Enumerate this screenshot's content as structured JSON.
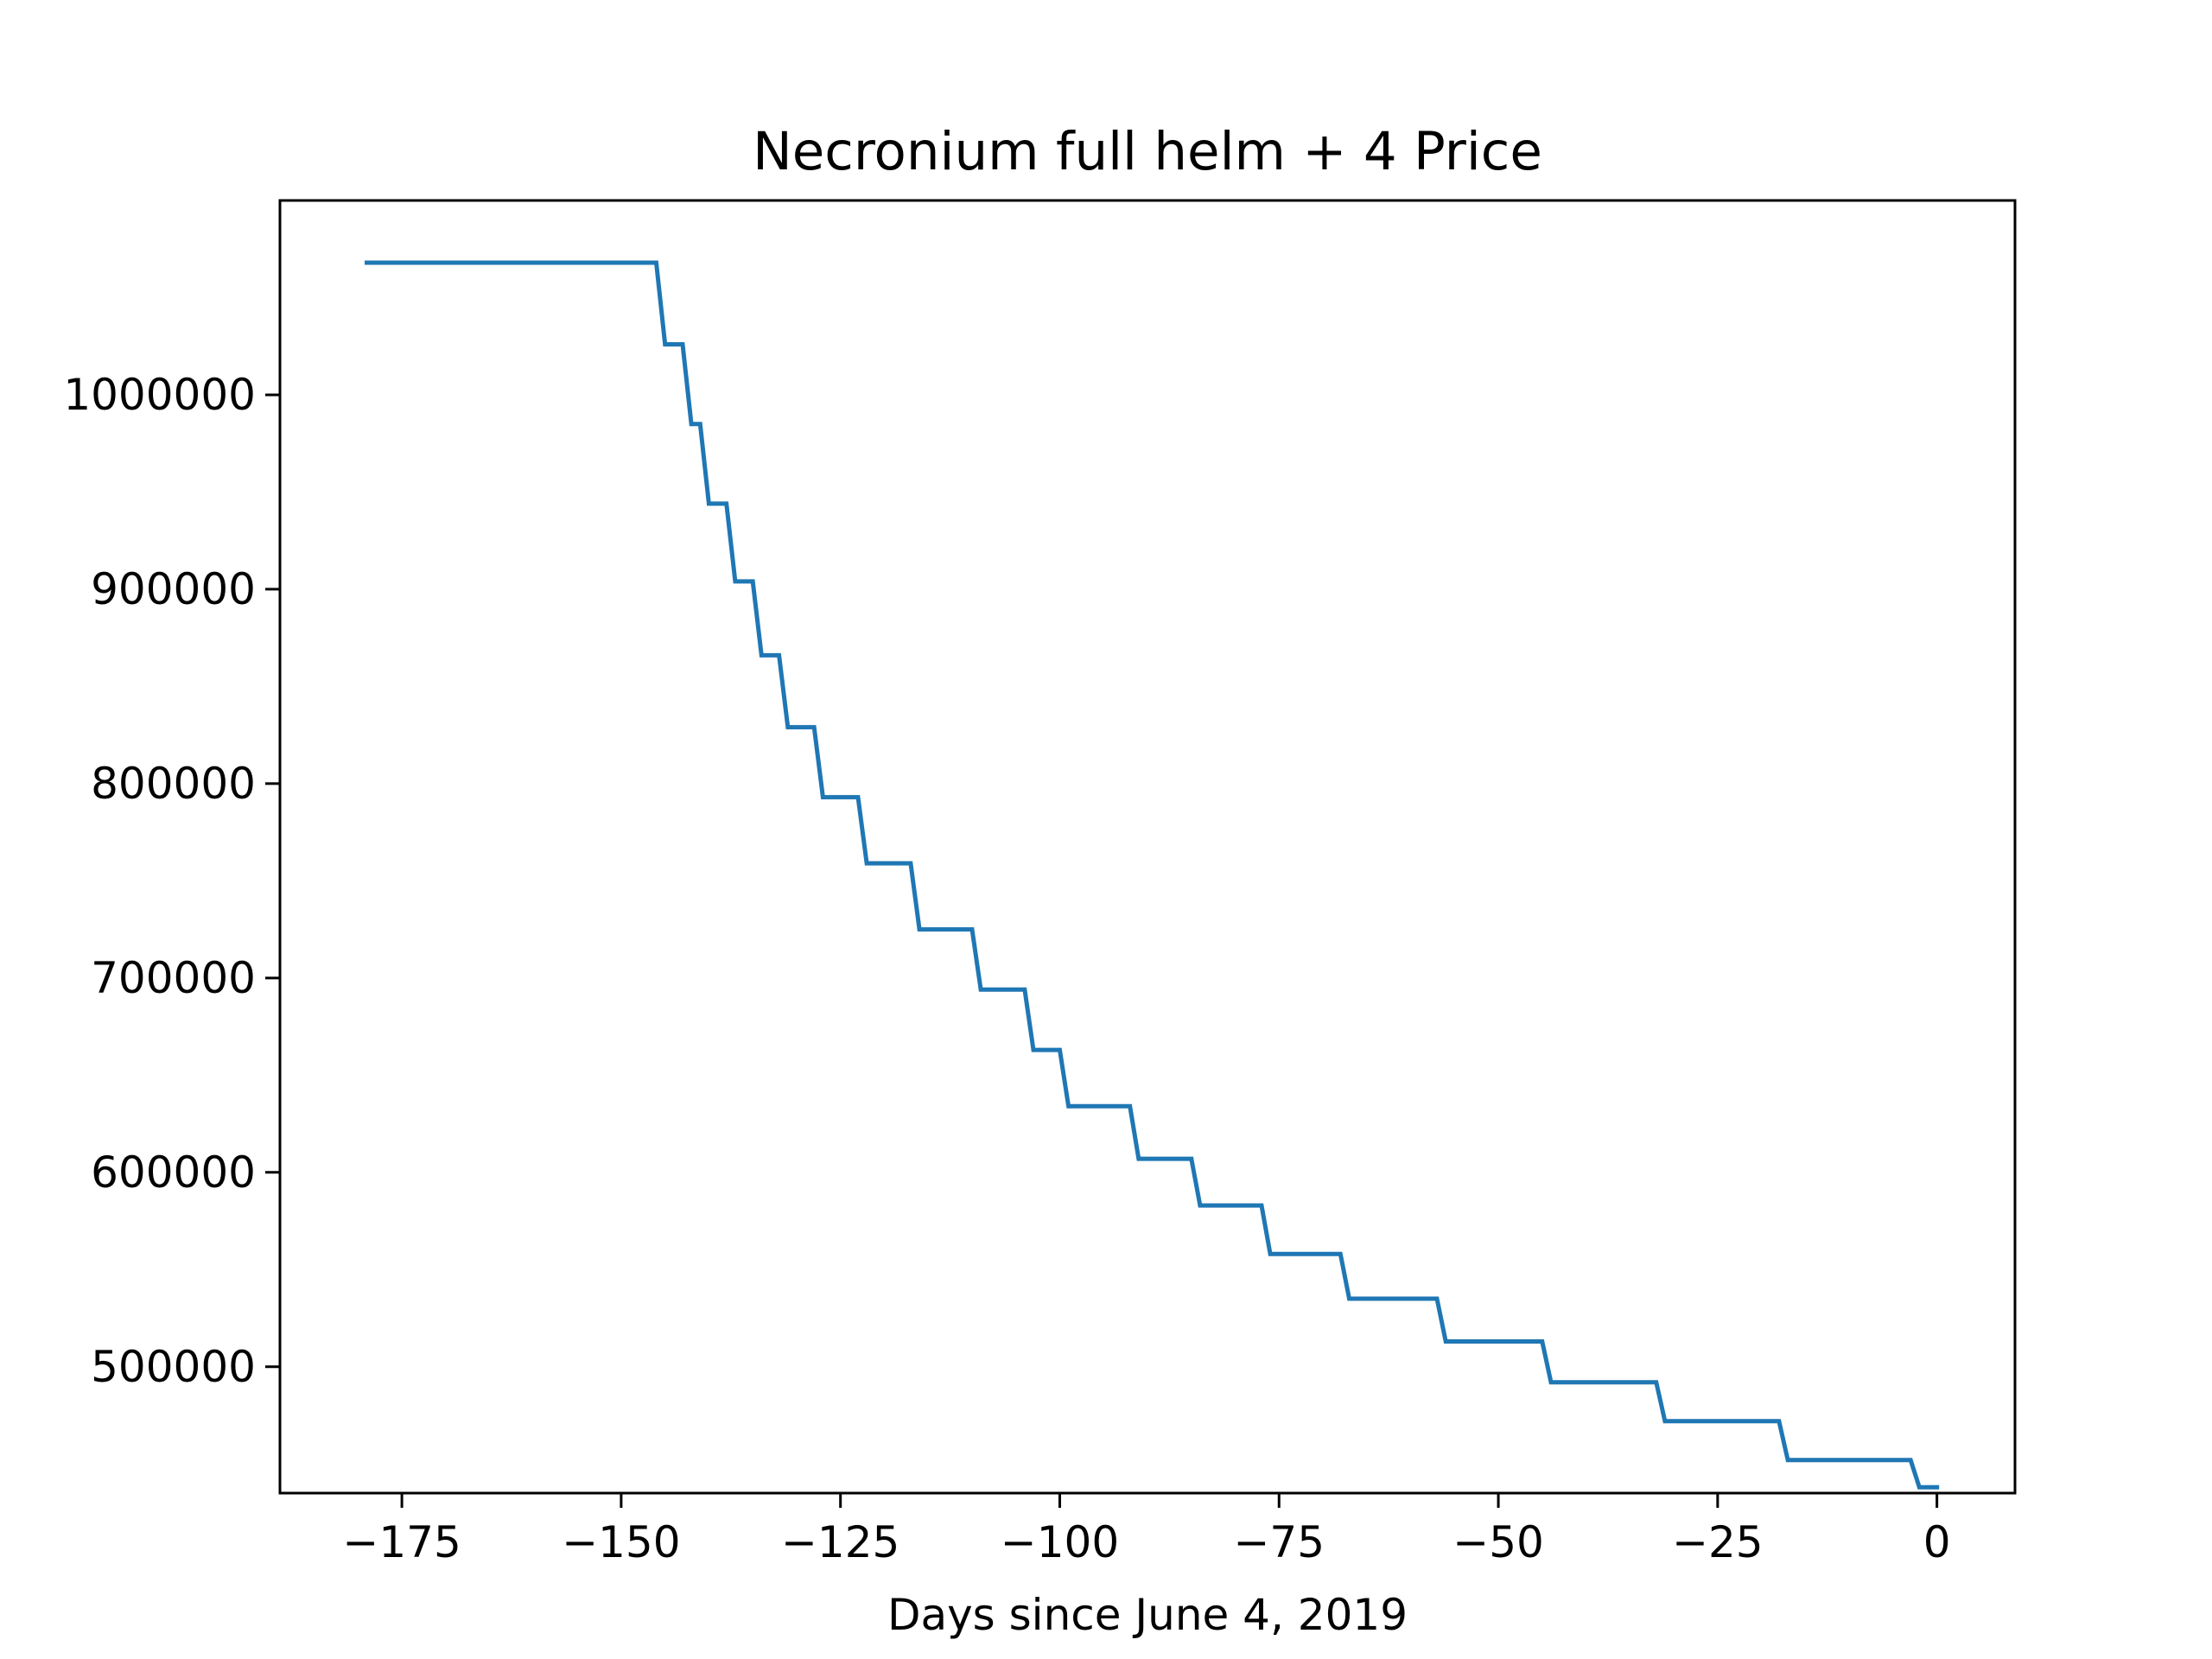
{
  "chart_data": {
    "type": "line",
    "title": "Necronium full helm + 4 Price",
    "xlabel": "Days since June 4, 2019",
    "ylabel": "",
    "xlim": [
      -188.9,
      8.9
    ],
    "ylim": [
      435000,
      1100000
    ],
    "xticks": [
      -175,
      -150,
      -125,
      -100,
      -75,
      -50,
      -25,
      0
    ],
    "xtick_labels": [
      "−175",
      "−150",
      "−125",
      "−100",
      "−75",
      "−50",
      "−25",
      "0"
    ],
    "yticks": [
      500000,
      600000,
      700000,
      800000,
      900000,
      1000000
    ],
    "ytick_labels": [
      "500000",
      "600000",
      "700000",
      "800000",
      "900000",
      "1000000"
    ],
    "grid": false,
    "series": [
      {
        "name": "",
        "color": "#1f77b4",
        "x": [
          -179,
          -146,
          -145,
          -143,
          -142,
          -141,
          -140,
          -138,
          -137,
          -135,
          -134,
          -132,
          -131,
          -128,
          -127,
          -123,
          -122,
          -117,
          -116,
          -110,
          -109,
          -104,
          -103,
          -100,
          -99,
          -92,
          -91,
          -85,
          -84,
          -77,
          -76,
          -68,
          -67,
          -57,
          -56,
          -45,
          -44,
          -32,
          -31,
          -18,
          -17,
          -3,
          -2,
          0
        ],
        "y": [
          1068000,
          1068000,
          1026000,
          1026000,
          985000,
          985000,
          944000,
          944000,
          904000,
          904000,
          866000,
          866000,
          829000,
          829000,
          793000,
          793000,
          759000,
          759000,
          725000,
          725000,
          694000,
          694000,
          663000,
          663000,
          634000,
          634000,
          607000,
          607000,
          583000,
          583000,
          558000,
          558000,
          535000,
          535000,
          513000,
          513000,
          492000,
          492000,
          472000,
          472000,
          452000,
          452000,
          438000,
          438000
        ]
      }
    ]
  }
}
